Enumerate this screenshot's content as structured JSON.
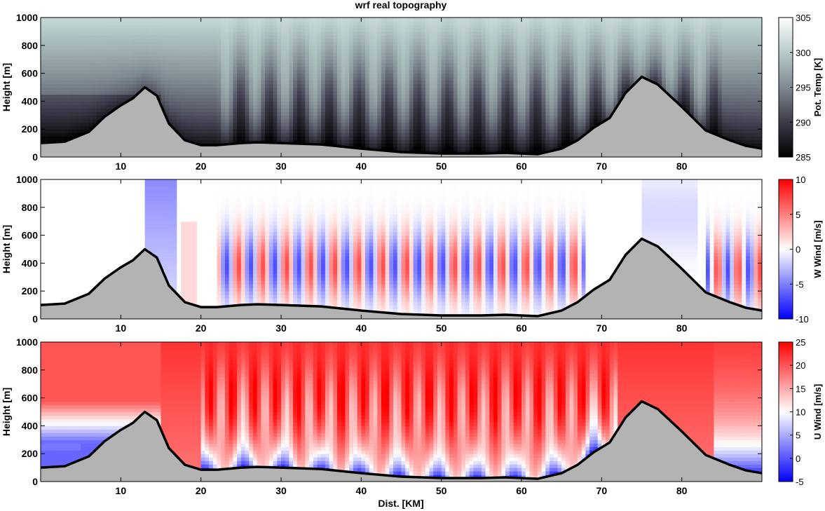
{
  "chart_data": [
    {
      "type": "heatmap",
      "title": "wrf real topography",
      "xlabel": "",
      "ylabel": "Height [m]",
      "xlim": [
        0,
        90
      ],
      "ylim": [
        0,
        1000
      ],
      "xticks": [
        10,
        20,
        30,
        40,
        50,
        60,
        70,
        80
      ],
      "yticks": [
        0,
        200,
        400,
        600,
        800,
        1000
      ],
      "colorbar": {
        "label": "Pot. Temp [K]",
        "range": [
          285,
          305
        ],
        "ticks": [
          285,
          290,
          295,
          300,
          305
        ],
        "colors": [
          "#000000",
          "#3d3a4a",
          "#7f8a92",
          "#b7ccca",
          "#ffffff"
        ]
      },
      "terrain": {
        "x": [
          0,
          3,
          6,
          8,
          10,
          11.5,
          13,
          14.5,
          16,
          18,
          20,
          22,
          25,
          27,
          30,
          35,
          40,
          45,
          50,
          55,
          58,
          62,
          65,
          67,
          69,
          71,
          73,
          75,
          77,
          80,
          83,
          86,
          88,
          90
        ],
        "height": [
          100,
          110,
          180,
          290,
          370,
          420,
          500,
          440,
          240,
          120,
          85,
          85,
          100,
          105,
          100,
          90,
          60,
          35,
          25,
          25,
          30,
          20,
          60,
          120,
          210,
          280,
          460,
          575,
          520,
          360,
          190,
          120,
          80,
          60
        ]
      },
      "terrain_color": "#b3b3b3"
    },
    {
      "type": "heatmap",
      "title": "",
      "xlabel": "",
      "ylabel": "Height [m]",
      "xlim": [
        0,
        90
      ],
      "ylim": [
        0,
        1000
      ],
      "xticks": [
        10,
        20,
        30,
        40,
        50,
        60,
        70,
        80
      ],
      "yticks": [
        0,
        200,
        400,
        600,
        800,
        1000
      ],
      "colorbar": {
        "label": "W Wind [m/s]",
        "range": [
          -10,
          10
        ],
        "ticks": [
          -10,
          -5,
          0,
          5,
          10
        ],
        "colors": [
          "#0000ff",
          "#ffffff",
          "#ff0000"
        ]
      },
      "terrain_color": "#b3b3b3"
    },
    {
      "type": "heatmap",
      "title": "",
      "xlabel": "Dist. [KM]",
      "ylabel": "Height [m]",
      "xlim": [
        0,
        90
      ],
      "ylim": [
        0,
        1000
      ],
      "xticks": [
        10,
        20,
        30,
        40,
        50,
        60,
        70,
        80
      ],
      "yticks": [
        0,
        200,
        400,
        600,
        800,
        1000
      ],
      "colorbar": {
        "label": "U Wind [m/s]",
        "range": [
          -5,
          25
        ],
        "ticks": [
          -5,
          0,
          5,
          10,
          15,
          20,
          25
        ],
        "colors": [
          "#0000ff",
          "#ffffff",
          "#ff0000"
        ]
      },
      "terrain_color": "#b3b3b3"
    }
  ]
}
